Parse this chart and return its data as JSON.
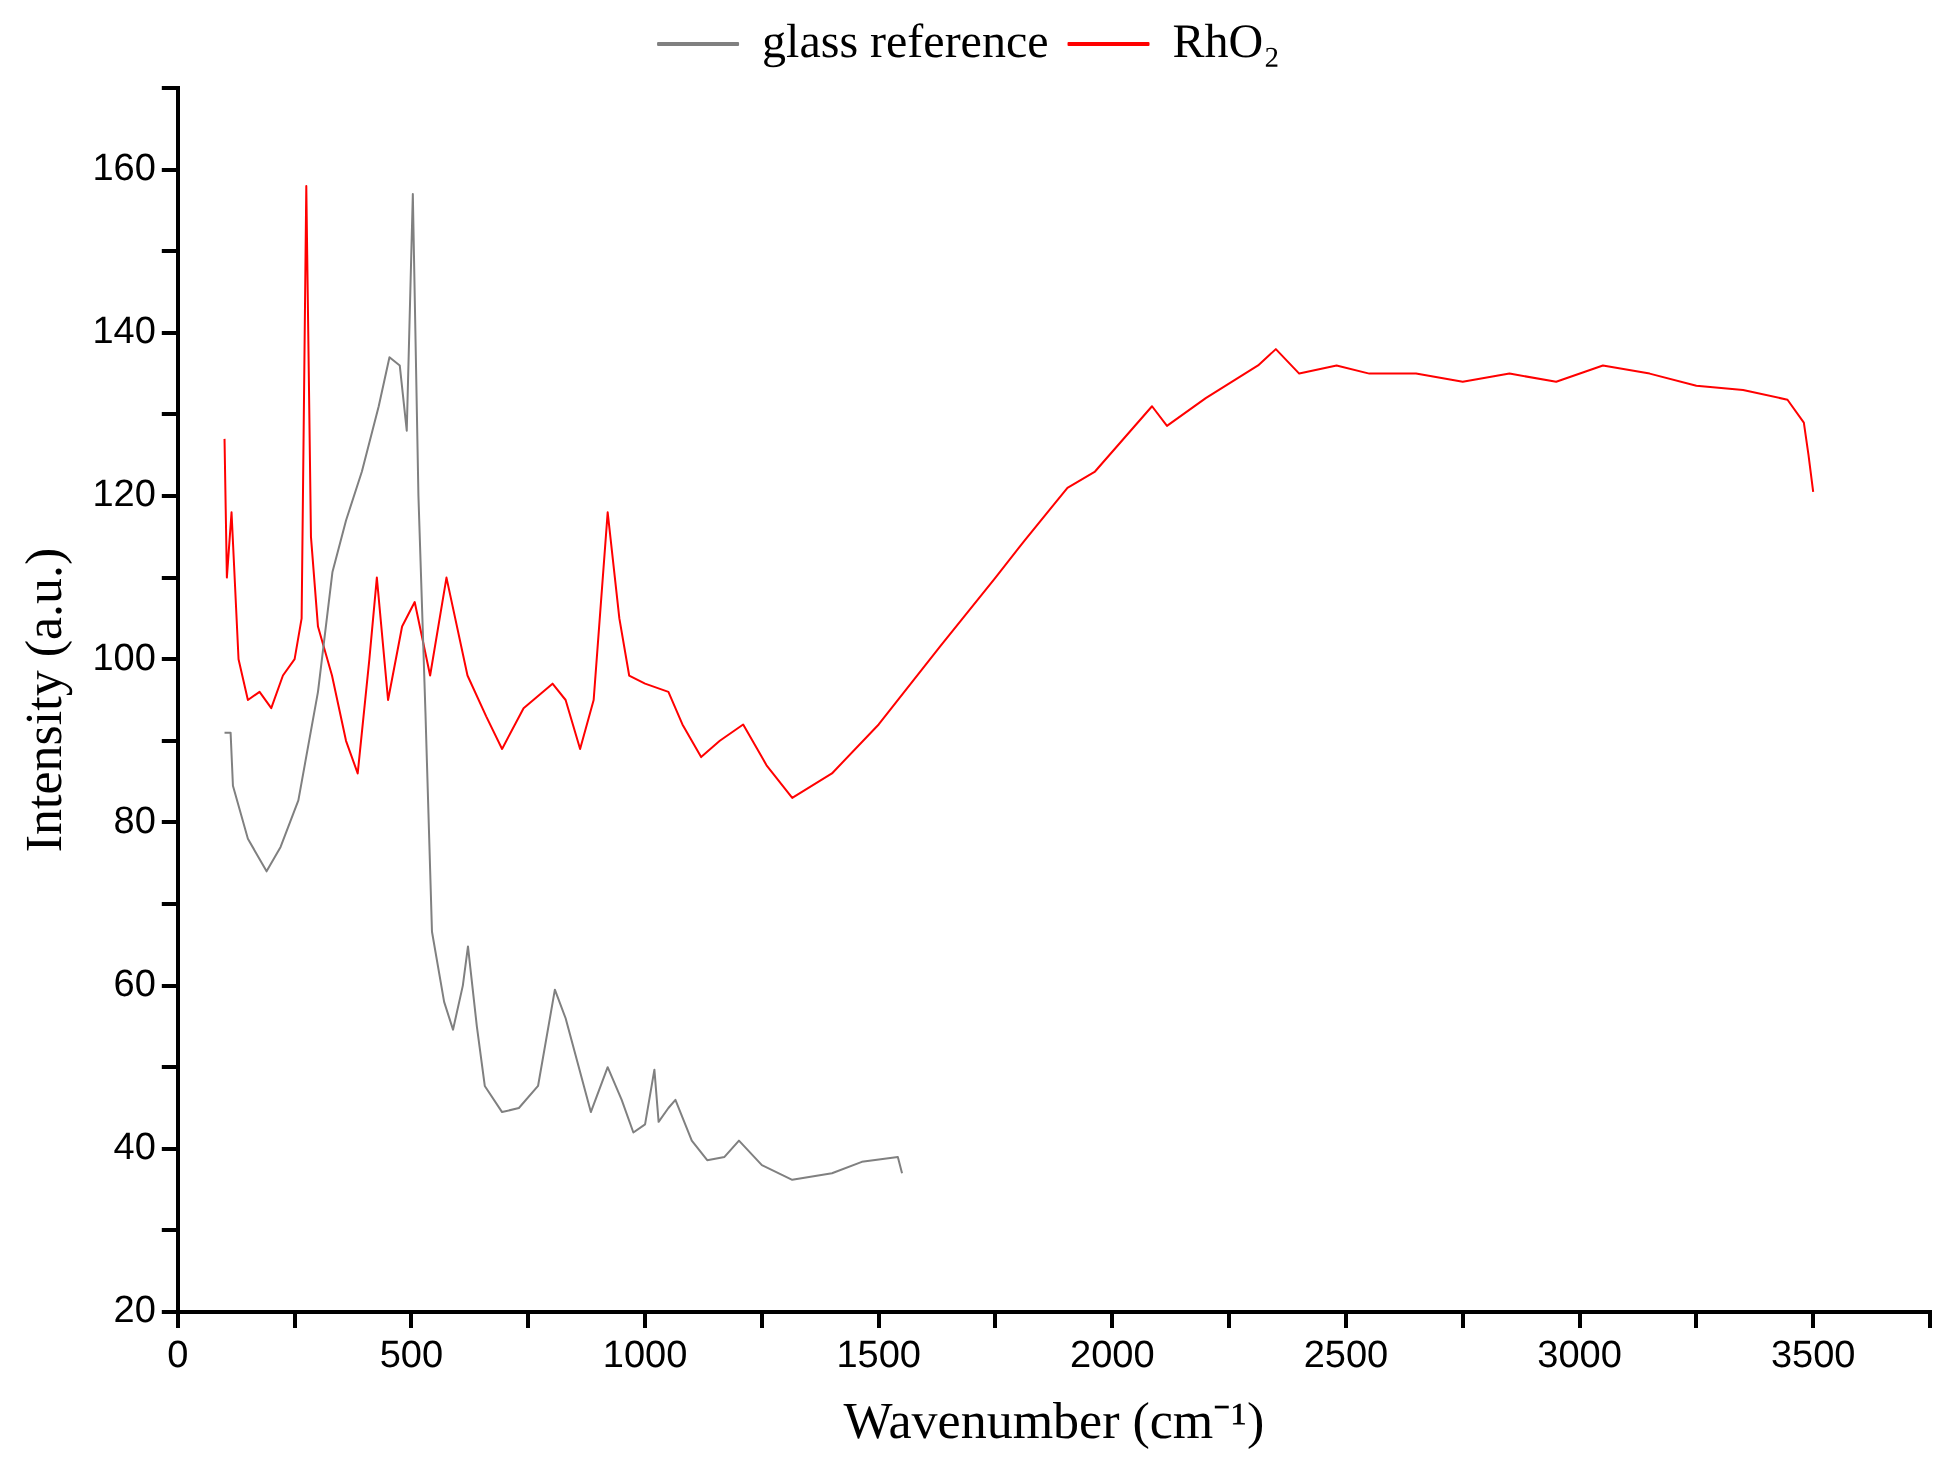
{
  "chart_data": {
    "type": "line",
    "xlabel": "Wavenumber (cm⁻¹)",
    "ylabel": "Intensity (a.u.)",
    "xlim": [
      0,
      3750
    ],
    "ylim": [
      20,
      170
    ],
    "xticks": [
      0,
      {
        "value": 250,
        "label": null
      },
      500,
      {
        "value": 750,
        "label": null
      },
      1000,
      {
        "value": 1250,
        "label": null
      },
      1500,
      {
        "value": 1750,
        "label": null
      },
      2000,
      {
        "value": 2250,
        "label": null
      },
      2500,
      {
        "value": 2750,
        "label": null
      },
      3000,
      {
        "value": 3250,
        "label": null
      },
      3500,
      {
        "value": 3750,
        "label": null
      }
    ],
    "yticks": [
      20,
      {
        "value": 30,
        "label": null
      },
      40,
      {
        "value": 50,
        "label": null
      },
      60,
      {
        "value": 70,
        "label": null
      },
      80,
      {
        "value": 90,
        "label": null
      },
      100,
      {
        "value": 110,
        "label": null
      },
      120,
      {
        "value": 130,
        "label": null
      },
      140,
      {
        "value": 150,
        "label": null
      },
      160,
      {
        "value": 170,
        "label": null
      }
    ],
    "grid": false,
    "legend": "top",
    "marker": "none",
    "line_style": "solid",
    "series": [
      {
        "name": "glass reference",
        "color": "#808080",
        "x": [
          100,
          113,
          118,
          150,
          190,
          220,
          258,
          300,
          331,
          360,
          394,
          430,
          453,
          475,
          490,
          503,
          515,
          530,
          544,
          570,
          589,
          610,
          621,
          640,
          657,
          694,
          730,
          771,
          807,
          830,
          861,
          884,
          920,
          950,
          975,
          1000,
          1020,
          1029,
          1050,
          1065,
          1100,
          1133,
          1170,
          1201,
          1250,
          1315,
          1400,
          1464,
          1541,
          1550
        ],
        "values": [
          91,
          91,
          84.5,
          78,
          74,
          77,
          82.7,
          96,
          110.7,
          117,
          123,
          131,
          137,
          136,
          128,
          157,
          120,
          93.5,
          66.6,
          58,
          54.6,
          60,
          64.8,
          55,
          47.7,
          44.5,
          45,
          47.7,
          59.5,
          56,
          49.4,
          44.5,
          50,
          46,
          42,
          43,
          49.7,
          43.3,
          45,
          46,
          41,
          38.6,
          39,
          41,
          38,
          36.2,
          37,
          38.4,
          39,
          37
        ]
      },
      {
        "name": "RhO₂",
        "color": "#ff0000",
        "x": [
          100,
          105,
          115,
          130,
          150,
          175,
          200,
          225,
          250,
          265,
          275,
          285,
          300,
          330,
          360,
          385,
          410,
          426,
          450,
          480,
          507,
          540,
          575,
          620,
          660,
          694,
          740,
          802,
          830,
          861,
          890,
          920,
          945,
          966,
          1000,
          1050,
          1080,
          1120,
          1160,
          1210,
          1260,
          1315,
          1400,
          1500,
          1632,
          1750,
          1813,
          1904,
          1963,
          2085,
          2117,
          2200,
          2312,
          2350,
          2400,
          2480,
          2550,
          2650,
          2750,
          2850,
          2950,
          3050,
          3150,
          3250,
          3350,
          3445,
          3480,
          3490,
          3500
        ],
        "values": [
          127,
          110,
          118,
          100,
          95,
          96,
          94,
          98,
          100,
          105,
          158,
          115,
          104,
          98,
          90,
          86,
          100,
          110,
          95,
          104,
          107,
          98,
          110,
          98,
          93,
          89,
          94,
          97,
          95,
          89,
          95,
          118,
          105,
          98,
          97,
          96,
          92,
          88,
          90,
          92,
          87,
          83,
          86,
          92,
          101.6,
          110,
          114.6,
          121,
          123,
          131,
          128.6,
          132,
          136,
          138,
          135,
          136,
          135,
          135,
          134,
          135,
          134,
          136,
          135,
          133.5,
          133,
          131.8,
          129,
          125,
          120.5
        ]
      }
    ]
  }
}
